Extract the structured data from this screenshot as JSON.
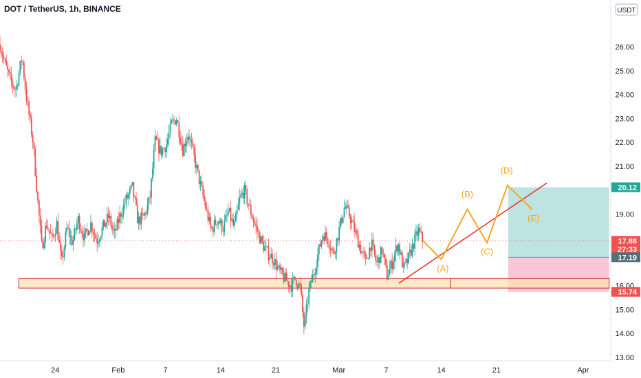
{
  "header": {
    "title": "DOT / TetherUS, 1h, BINANCE"
  },
  "chart_data": {
    "type": "candlestick",
    "symbol": "DOT / TetherUS",
    "interval": "1h",
    "exchange": "BINANCE",
    "currency_label": "USDT",
    "ylim": [
      12.8,
      27.5
    ],
    "y_ticks": [
      "26.00",
      "25.00",
      "24.00",
      "23.00",
      "22.00",
      "21.00",
      "19.00",
      "16.00",
      "15.00",
      "14.00",
      "13.00"
    ],
    "x_ticks": [
      {
        "label": "24",
        "day": 24
      },
      {
        "label": "Feb",
        "day": 32
      },
      {
        "label": "7",
        "day": 38
      },
      {
        "label": "14",
        "day": 45
      },
      {
        "label": "21",
        "day": 52
      },
      {
        "label": "Mar",
        "day": 60
      },
      {
        "label": "7",
        "day": 66
      },
      {
        "label": "14",
        "day": 73
      },
      {
        "label": "21",
        "day": 80
      },
      {
        "label": "Apr",
        "day": 91
      }
    ],
    "x_domain": [
      17.0,
      94.5
    ],
    "price_path": [
      [
        17.0,
        26.1
      ],
      [
        17.6,
        25.3
      ],
      [
        18.3,
        24.6
      ],
      [
        19.0,
        24.2
      ],
      [
        19.8,
        25.6
      ],
      [
        20.3,
        24.0
      ],
      [
        21.2,
        22.0
      ],
      [
        21.8,
        19.5
      ],
      [
        22.3,
        17.6
      ],
      [
        22.9,
        18.6
      ],
      [
        23.6,
        17.9
      ],
      [
        24.2,
        18.6
      ],
      [
        24.8,
        16.9
      ],
      [
        25.5,
        18.4
      ],
      [
        26.2,
        17.8
      ],
      [
        26.9,
        18.8
      ],
      [
        27.7,
        18.0
      ],
      [
        28.5,
        18.6
      ],
      [
        29.3,
        17.9
      ],
      [
        30.0,
        18.4
      ],
      [
        30.8,
        18.9
      ],
      [
        31.5,
        18.1
      ],
      [
        32.2,
        18.9
      ],
      [
        33.0,
        19.6
      ],
      [
        33.8,
        20.1
      ],
      [
        34.5,
        18.7
      ],
      [
        35.3,
        18.9
      ],
      [
        36.0,
        19.6
      ],
      [
        36.7,
        22.1
      ],
      [
        37.4,
        21.6
      ],
      [
        38.1,
        21.9
      ],
      [
        38.8,
        22.8
      ],
      [
        39.4,
        23.0
      ],
      [
        40.2,
        21.7
      ],
      [
        40.9,
        22.4
      ],
      [
        41.6,
        21.4
      ],
      [
        42.3,
        20.4
      ],
      [
        43.0,
        19.4
      ],
      [
        43.8,
        18.3
      ],
      [
        44.6,
        18.8
      ],
      [
        45.3,
        18.4
      ],
      [
        46.0,
        19.1
      ],
      [
        46.7,
        18.4
      ],
      [
        47.4,
        19.6
      ],
      [
        48.0,
        20.0
      ],
      [
        48.7,
        19.2
      ],
      [
        49.4,
        18.5
      ],
      [
        50.2,
        17.8
      ],
      [
        50.9,
        17.4
      ],
      [
        51.7,
        17.1
      ],
      [
        52.4,
        16.6
      ],
      [
        53.1,
        16.3
      ],
      [
        53.9,
        16.0
      ],
      [
        54.5,
        16.3
      ],
      [
        55.1,
        15.9
      ],
      [
        55.6,
        14.2
      ],
      [
        56.2,
        15.8
      ],
      [
        56.8,
        16.5
      ],
      [
        57.4,
        17.4
      ],
      [
        58.0,
        18.2
      ],
      [
        58.7,
        17.9
      ],
      [
        59.3,
        17.3
      ],
      [
        60.0,
        18.3
      ],
      [
        60.7,
        19.3
      ],
      [
        61.4,
        18.9
      ],
      [
        62.0,
        18.3
      ],
      [
        62.7,
        17.6
      ],
      [
        63.4,
        17.0
      ],
      [
        64.1,
        17.8
      ],
      [
        64.8,
        16.9
      ],
      [
        65.5,
        17.5
      ],
      [
        66.1,
        16.4
      ],
      [
        66.8,
        17.0
      ],
      [
        67.5,
        17.8
      ],
      [
        68.2,
        16.7
      ],
      [
        68.8,
        17.1
      ],
      [
        69.5,
        17.8
      ],
      [
        70.1,
        18.3
      ],
      [
        70.6,
        17.9
      ]
    ],
    "support_zone": {
      "low": 15.9,
      "high": 16.3,
      "day_start": 19.4,
      "day_split": 74.2,
      "day_end": 94.3
    },
    "trendline": {
      "from": [
        67.6,
        16.1
      ],
      "to": [
        86.4,
        20.3
      ]
    },
    "projection": {
      "path": [
        [
          70.6,
          17.9
        ],
        [
          73.0,
          17.1
        ],
        [
          76.3,
          19.2
        ],
        [
          78.8,
          17.8
        ],
        [
          81.4,
          20.2
        ],
        [
          84.5,
          19.2
        ]
      ],
      "labels": [
        {
          "text": "(A)",
          "day": 73.2,
          "price": 16.6
        },
        {
          "text": "(B)",
          "day": 76.3,
          "price": 19.7
        },
        {
          "text": "(C)",
          "day": 78.8,
          "price": 17.3
        },
        {
          "text": "(D)",
          "day": 81.3,
          "price": 20.7
        },
        {
          "text": "(E)",
          "day": 84.7,
          "price": 18.7
        }
      ]
    },
    "position": {
      "day_start": 81.5,
      "day_end": 94.3,
      "target": 20.12,
      "entry": 17.19,
      "stop": 15.74,
      "profit_color": "#b2dfdb",
      "loss_color": "#f8bbd0"
    },
    "price_tags": [
      {
        "price": 20.12,
        "text": "20.12",
        "color": "#26a69a"
      },
      {
        "price": 17.88,
        "text": "17.88",
        "color": "#ef5350"
      },
      {
        "price": 17.19,
        "text": "17.19",
        "color": "#546e7a"
      },
      {
        "price": 15.74,
        "text": "15.74",
        "color": "#ef5350"
      }
    ],
    "countdown": "27:33",
    "current_price": 17.88,
    "colors": {
      "up": "#26a69a",
      "down": "#ef5350",
      "zone_fill": "#ffe0b2",
      "zone_border": "#c62828",
      "trend": "#e53935",
      "wave": "#f5a623"
    }
  }
}
